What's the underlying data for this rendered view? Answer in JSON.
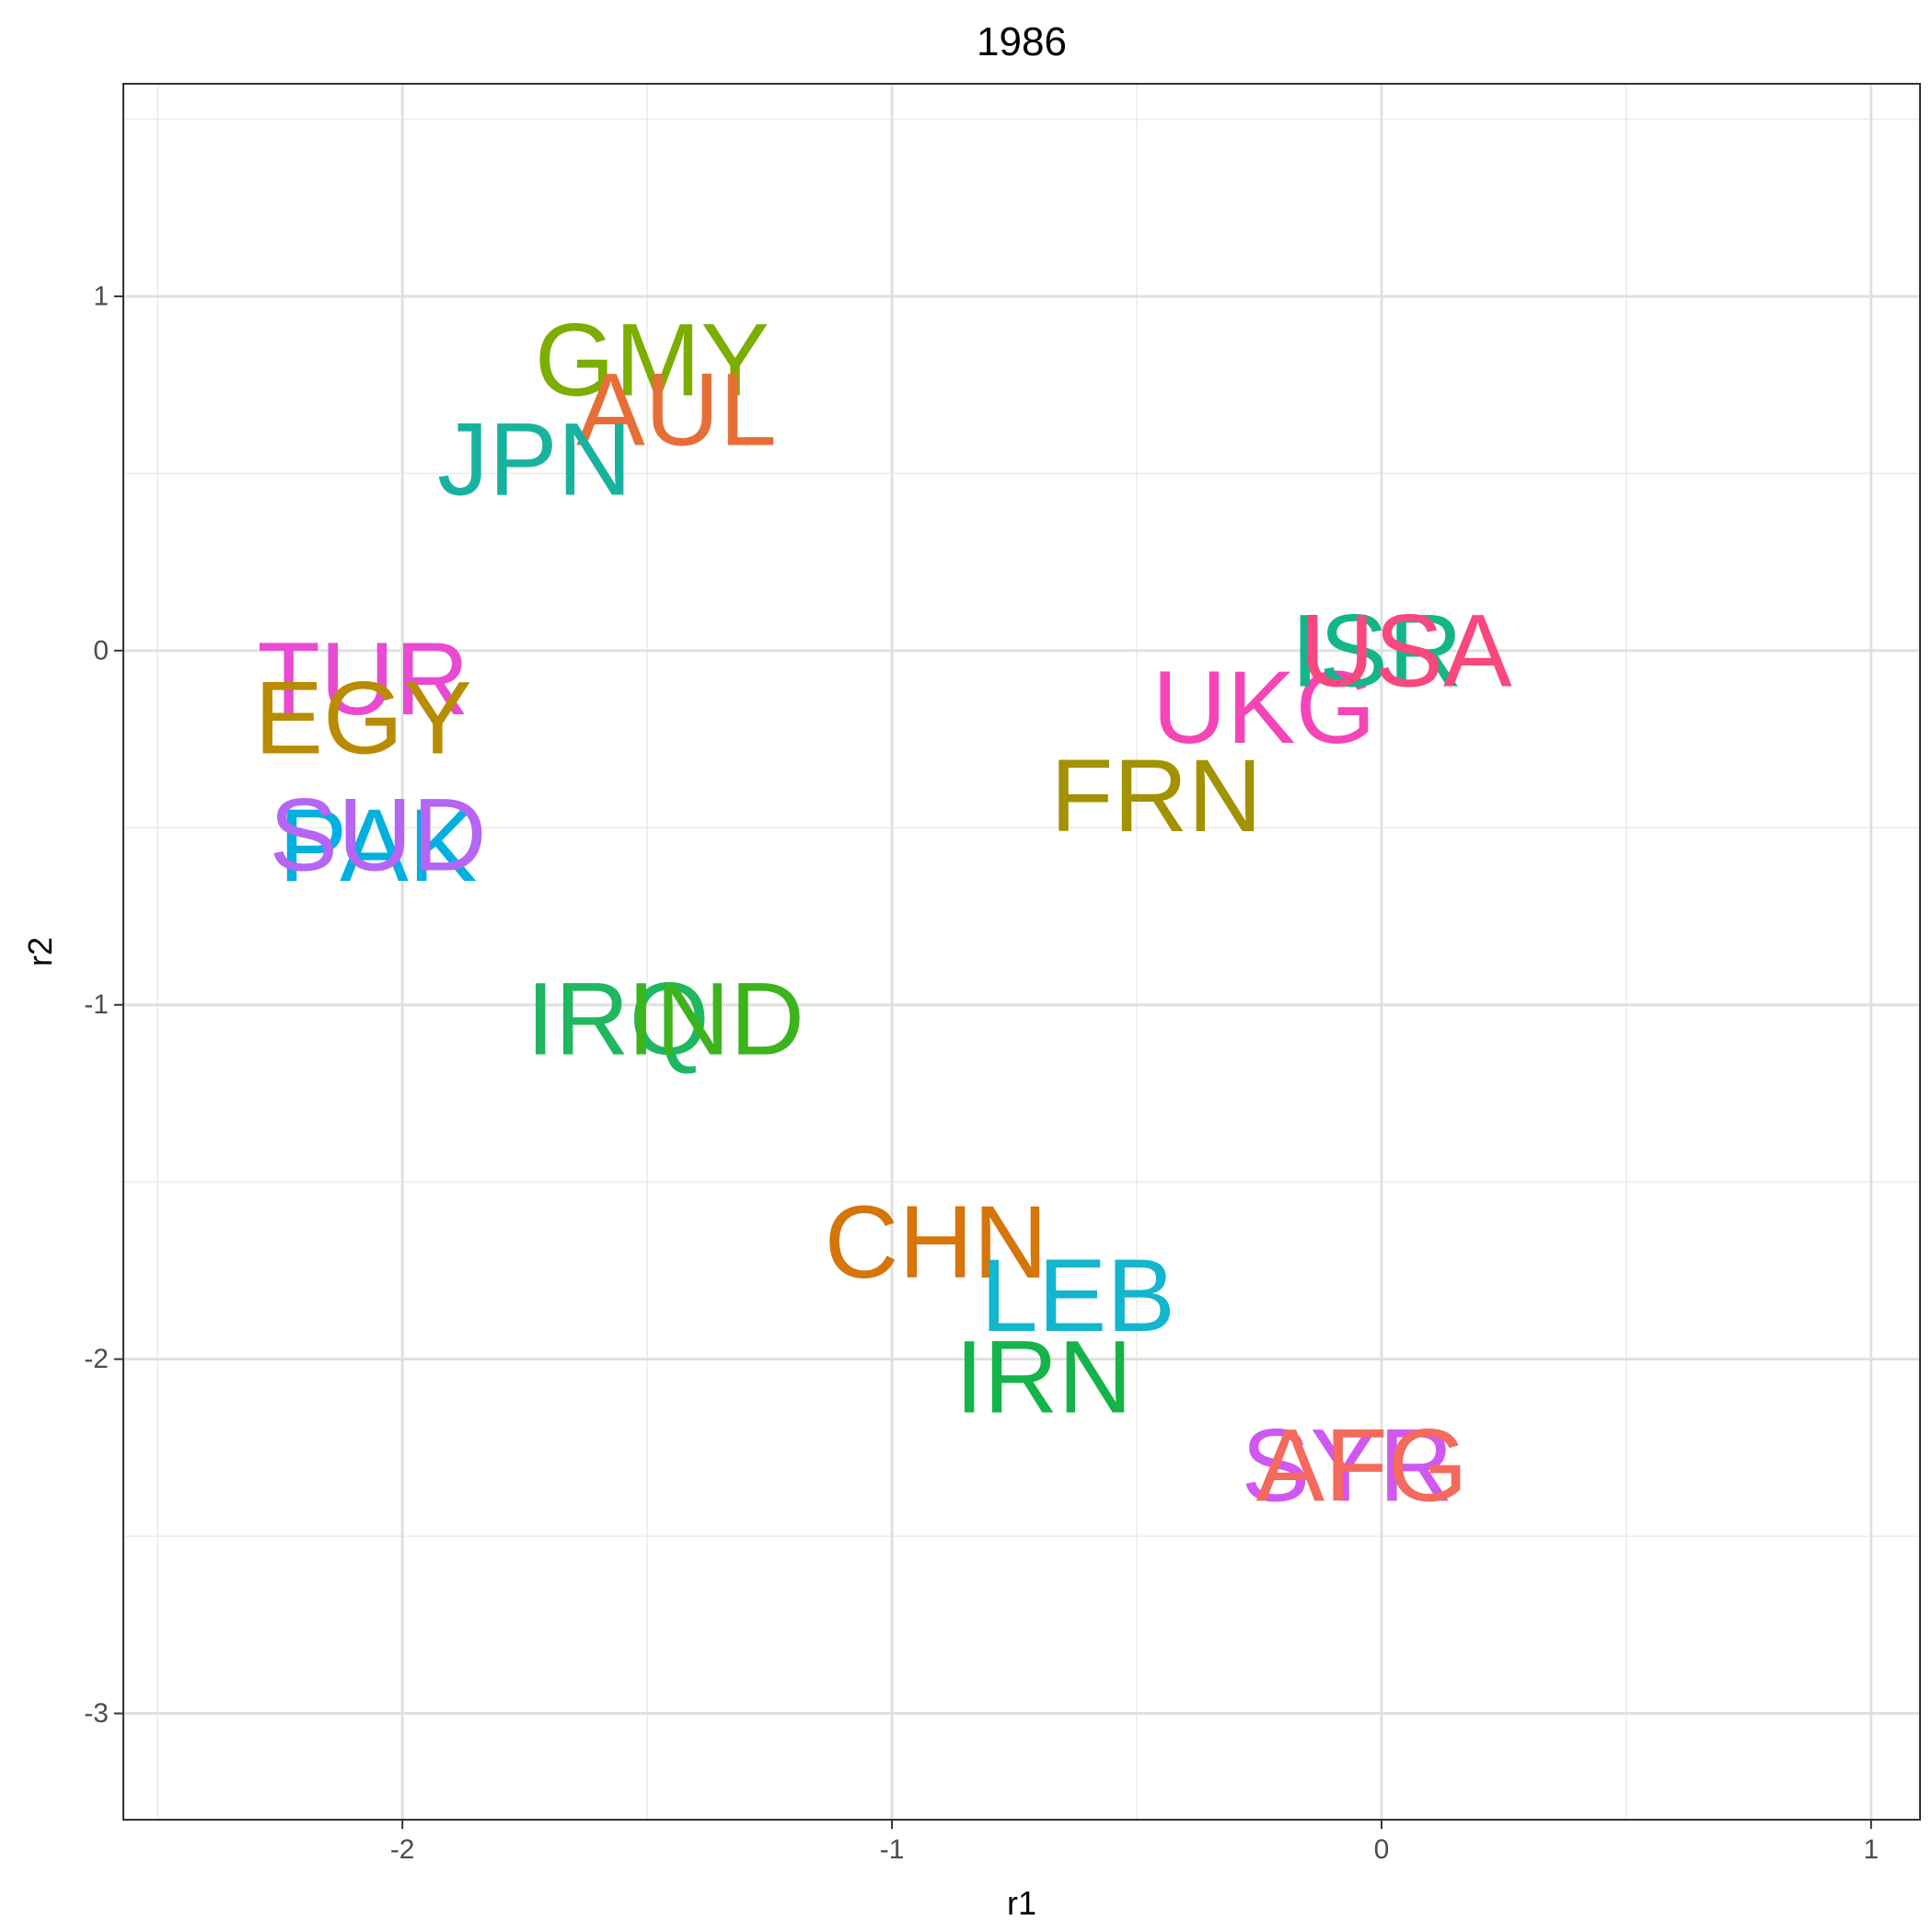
{
  "chart_data": {
    "type": "scatter",
    "title": "1986",
    "xlabel": "r1",
    "ylabel": "r2",
    "xlim": [
      -2.57,
      1.1
    ],
    "ylim": [
      -3.3,
      1.6
    ],
    "x_ticks": [
      -2,
      -1,
      0,
      1
    ],
    "x_tick_labels": [
      "-2",
      "-1",
      "0",
      "1"
    ],
    "y_ticks": [
      1,
      0,
      -1,
      -2,
      -3
    ],
    "y_tick_labels": [
      "1",
      "0",
      "-1",
      "-2",
      "-3"
    ],
    "x_minor_ticks": [
      -2.5,
      -1.5,
      -0.5,
      0.5
    ],
    "y_minor_ticks": [
      1.5,
      0.5,
      -0.5,
      -1.5,
      -2.5
    ],
    "grid": true,
    "legend": "none",
    "points": [
      {
        "label": "GMY",
        "x": -1.49,
        "y": 0.82,
        "color": "#7CAE00"
      },
      {
        "label": "AUL",
        "x": -1.44,
        "y": 0.68,
        "color": "#E76F37"
      },
      {
        "label": "JPN",
        "x": -1.73,
        "y": 0.54,
        "color": "#18B39E"
      },
      {
        "label": "TUR",
        "x": -2.08,
        "y": -0.08,
        "color": "#E84BD2"
      },
      {
        "label": "EGY",
        "x": -2.08,
        "y": -0.19,
        "color": "#B98C00"
      },
      {
        "label": "PAK",
        "x": -2.05,
        "y": -0.55,
        "color": "#00B0E0"
      },
      {
        "label": "SUD",
        "x": -2.05,
        "y": -0.52,
        "color": "#B566F4"
      },
      {
        "label": "IRQ",
        "x": -1.56,
        "y": -1.04,
        "color": "#1FB760"
      },
      {
        "label": "IND",
        "x": -1.36,
        "y": -1.04,
        "color": "#3CB41C"
      },
      {
        "label": "FRN",
        "x": -0.46,
        "y": -0.41,
        "color": "#A39200"
      },
      {
        "label": "UKG",
        "x": -0.24,
        "y": -0.16,
        "color": "#F645B8"
      },
      {
        "label": "ISR",
        "x": -0.01,
        "y": 0.0,
        "color": "#13B589"
      },
      {
        "label": "USA",
        "x": 0.05,
        "y": 0.0,
        "color": "#F8487E"
      },
      {
        "label": "CHN",
        "x": -0.91,
        "y": -1.67,
        "color": "#D5750A"
      },
      {
        "label": "LEB",
        "x": -0.62,
        "y": -1.82,
        "color": "#13B6CC"
      },
      {
        "label": "IRN",
        "x": -0.69,
        "y": -2.05,
        "color": "#14B44A"
      },
      {
        "label": "SYR",
        "x": -0.07,
        "y": -2.3,
        "color": "#D057F0"
      },
      {
        "label": "AFG",
        "x": -0.04,
        "y": -2.3,
        "color": "#F46A5C"
      }
    ]
  }
}
